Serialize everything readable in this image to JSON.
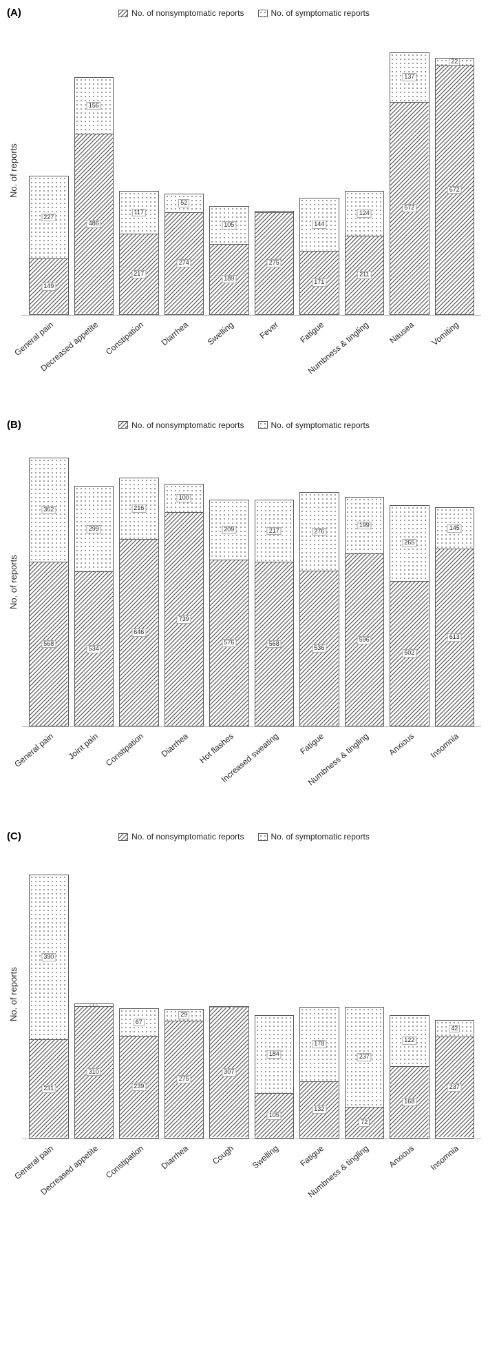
{
  "legend": {
    "nonsym": "No. of nonsymptomatic reports",
    "sym": "No. of symptomatic reports"
  },
  "ylabel": "No. of reports",
  "colors": {
    "border": "#595959",
    "grid": "#c0c0c0",
    "text": "#262626",
    "bg": "#ffffff"
  },
  "font": {
    "legend_size": 12,
    "axis_size": 13,
    "value_size": 9,
    "panel_label_size": 15
  },
  "panels": [
    {
      "id": "A",
      "label": "(A)",
      "ymax": 780,
      "categories": [
        "General pain",
        "Decreased appetite",
        "Constipation",
        "Diarrhea",
        "Swelling",
        "Fever",
        "Fatigue",
        "Numbness & tingling",
        "Nausea",
        "Vomiting"
      ],
      "nonsym": [
        149,
        486,
        217,
        274,
        189,
        275,
        171,
        211,
        572,
        672
      ],
      "sym": [
        227,
        156,
        117,
        52,
        105,
        6,
        144,
        124,
        137,
        22
      ]
    },
    {
      "id": "B",
      "label": "(B)",
      "ymax": 1000,
      "categories": [
        "General pain",
        "Joint pain",
        "Constipation",
        "Diarrhea",
        "Hot flashes",
        "Increased sweating",
        "Fatigue",
        "Numbness & tingling",
        "Anxious",
        "Insomnia"
      ],
      "nonsym": [
        568,
        534,
        646,
        739,
        576,
        568,
        536,
        596,
        502,
        613
      ],
      "sym": [
        362,
        299,
        216,
        100,
        209,
        217,
        276,
        199,
        265,
        145
      ]
    },
    {
      "id": "C",
      "label": "(C)",
      "ymax": 680,
      "categories": [
        "General pain",
        "Decreased appetite",
        "Constipation",
        "Diarrhea",
        "Cough",
        "Swelling",
        "Fatigue",
        "Numbness & tingling",
        "Anxious",
        "Insomnia"
      ],
      "nonsym": [
        231,
        310,
        239,
        275,
        307,
        105,
        132,
        72,
        168,
        237
      ],
      "sym": [
        390,
        7,
        67,
        29,
        4,
        184,
        178,
        237,
        122,
        42
      ]
    }
  ]
}
